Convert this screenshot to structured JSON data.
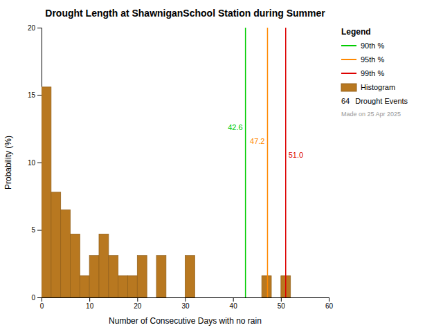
{
  "chart_data": {
    "type": "histogram",
    "title": "Drought Length at ShawniganSchool Station during Summer",
    "xlabel": "Number of Consecutive Days with no rain",
    "ylabel": "Probability (%)",
    "xlim": [
      0,
      60
    ],
    "ylim": [
      0,
      20
    ],
    "xticks": [
      0,
      10,
      20,
      30,
      40,
      50,
      60
    ],
    "yticks": [
      0,
      5,
      10,
      15,
      20
    ],
    "grid": false,
    "legend": "upper right",
    "legend_title": "Legend",
    "data_labels": true,
    "series": [
      {
        "name": "90th %",
        "type": "vline",
        "color": "#00cc00",
        "x": 42.6,
        "value_label": "42.6"
      },
      {
        "name": "95th %",
        "type": "vline",
        "color": "#ff8800",
        "x": 47.2,
        "value_label": "47.2"
      },
      {
        "name": "99th %",
        "type": "vline",
        "color": "#dd0000",
        "x": 51.0,
        "value_label": "51.0"
      },
      {
        "name": "Histogram",
        "type": "histogram",
        "color": "#b87820",
        "bins": [
          0,
          2,
          4,
          6,
          8,
          10,
          12,
          14,
          16,
          18,
          20,
          22,
          24,
          26,
          28,
          30,
          32,
          34,
          36,
          38,
          40,
          42,
          44,
          46,
          48,
          50,
          52,
          54,
          56,
          58,
          60
        ],
        "values": [
          15.6,
          7.8,
          6.5,
          4.7,
          1.6,
          3.1,
          4.7,
          3.1,
          1.6,
          1.6,
          3.1,
          0.0,
          3.1,
          0.0,
          0.0,
          3.1,
          0.0,
          0.0,
          0.0,
          0.0,
          0.0,
          0.0,
          0.0,
          1.6,
          0.0,
          1.6,
          0.0,
          0.0,
          0.0,
          0.0
        ]
      }
    ],
    "events": {
      "count": 64,
      "label": "Drought Events"
    },
    "watermark": "Made on 25 Apr 2025"
  }
}
